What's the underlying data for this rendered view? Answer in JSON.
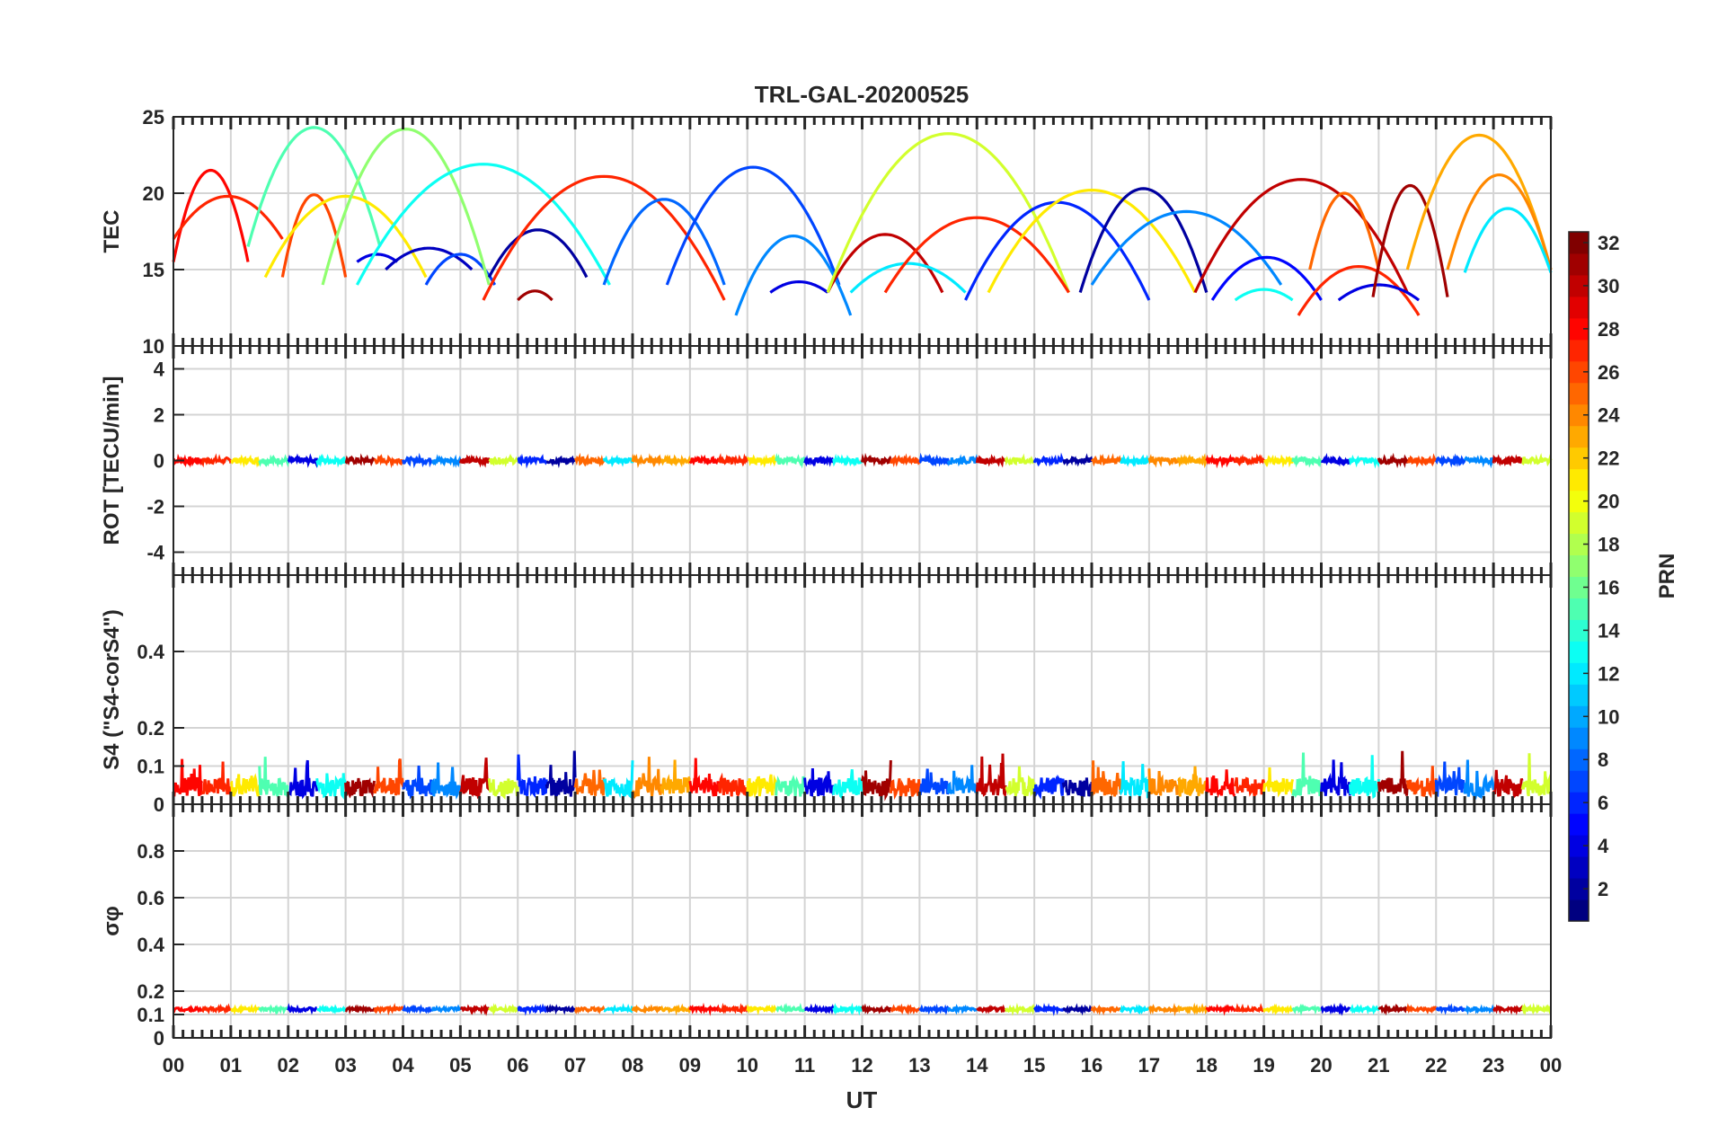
{
  "chart_data": {
    "type": "line",
    "title": "TRL-GAL-20200525",
    "xlabel": "UT",
    "x_tick_labels": [
      "00",
      "01",
      "02",
      "03",
      "04",
      "05",
      "06",
      "07",
      "08",
      "09",
      "10",
      "11",
      "12",
      "13",
      "14",
      "15",
      "16",
      "17",
      "18",
      "19",
      "20",
      "21",
      "22",
      "23",
      "00"
    ],
    "xlim": [
      0,
      24
    ],
    "grid": true,
    "colorbar": {
      "label": "PRN",
      "range": [
        1,
        32
      ],
      "ticks": [
        "2",
        "4",
        "6",
        "8",
        "10",
        "12",
        "14",
        "16",
        "18",
        "20",
        "22",
        "24",
        "26",
        "28",
        "30",
        "32"
      ],
      "colormap": "jet"
    },
    "panels": [
      {
        "id": "tec",
        "ylabel": "TEC",
        "ylim": [
          10,
          25
        ],
        "y_ticks": [
          "10",
          "15",
          "20",
          "25"
        ],
        "series": [
          {
            "prn": 28,
            "start": 0.0,
            "end": 1.3,
            "peak": 21.5,
            "min": 15.5
          },
          {
            "prn": 27,
            "start": 0.0,
            "end": 1.9,
            "peak": 19.8,
            "min": 17.0
          },
          {
            "prn": 15,
            "start": 1.3,
            "end": 3.6,
            "peak": 24.3,
            "min": 16.5
          },
          {
            "prn": 26,
            "start": 1.9,
            "end": 3.0,
            "peak": 19.9,
            "min": 14.5
          },
          {
            "prn": 21,
            "start": 1.6,
            "end": 4.4,
            "peak": 19.8,
            "min": 14.5
          },
          {
            "prn": 4,
            "start": 3.2,
            "end": 3.9,
            "peak": 16.0,
            "min": 15.5
          },
          {
            "prn": 3,
            "start": 3.7,
            "end": 5.2,
            "peak": 16.4,
            "min": 15.0
          },
          {
            "prn": 7,
            "start": 4.4,
            "end": 5.6,
            "peak": 16.0,
            "min": 14.0
          },
          {
            "prn": 17,
            "start": 2.6,
            "end": 5.5,
            "peak": 24.2,
            "min": 14.0
          },
          {
            "prn": 13,
            "start": 3.2,
            "end": 7.6,
            "peak": 21.9,
            "min": 14.0
          },
          {
            "prn": 2,
            "start": 5.5,
            "end": 7.2,
            "peak": 17.6,
            "min": 14.5
          },
          {
            "prn": 27,
            "start": 5.4,
            "end": 9.6,
            "peak": 21.1,
            "min": 13.0
          },
          {
            "prn": 31,
            "start": 6.0,
            "end": 6.6,
            "peak": 13.6,
            "min": 13.0
          },
          {
            "prn": 8,
            "start": 7.5,
            "end": 9.6,
            "peak": 19.6,
            "min": 14.0
          },
          {
            "prn": 7,
            "start": 8.6,
            "end": 11.6,
            "peak": 21.7,
            "min": 14.0
          },
          {
            "prn": 9,
            "start": 9.8,
            "end": 11.8,
            "peak": 17.2,
            "min": 12.0
          },
          {
            "prn": 4,
            "start": 10.4,
            "end": 11.4,
            "peak": 14.2,
            "min": 13.5
          },
          {
            "prn": 30,
            "start": 11.4,
            "end": 13.4,
            "peak": 17.3,
            "min": 13.5
          },
          {
            "prn": 19,
            "start": 11.4,
            "end": 15.6,
            "peak": 23.9,
            "min": 13.5
          },
          {
            "prn": 12,
            "start": 11.8,
            "end": 13.8,
            "peak": 15.4,
            "min": 13.5
          },
          {
            "prn": 27,
            "start": 12.4,
            "end": 15.6,
            "peak": 18.4,
            "min": 13.5
          },
          {
            "prn": 6,
            "start": 13.8,
            "end": 17.0,
            "peak": 19.4,
            "min": 13.0
          },
          {
            "prn": 21,
            "start": 14.2,
            "end": 17.8,
            "peak": 20.2,
            "min": 13.5
          },
          {
            "prn": 2,
            "start": 15.8,
            "end": 18.0,
            "peak": 20.3,
            "min": 13.5
          },
          {
            "prn": 9,
            "start": 16.0,
            "end": 19.3,
            "peak": 18.8,
            "min": 14.0
          },
          {
            "prn": 30,
            "start": 17.8,
            "end": 21.5,
            "peak": 20.9,
            "min": 13.5
          },
          {
            "prn": 5,
            "start": 18.1,
            "end": 20.0,
            "peak": 15.8,
            "min": 13.0
          },
          {
            "prn": 13,
            "start": 18.5,
            "end": 19.5,
            "peak": 13.7,
            "min": 13.0
          },
          {
            "prn": 27,
            "start": 19.6,
            "end": 21.7,
            "peak": 15.2,
            "min": 12.0
          },
          {
            "prn": 4,
            "start": 20.3,
            "end": 21.7,
            "peak": 14.0,
            "min": 13.0
          },
          {
            "prn": 25,
            "start": 19.8,
            "end": 21.0,
            "peak": 20.0,
            "min": 15.0
          },
          {
            "prn": 31,
            "start": 20.9,
            "end": 22.2,
            "peak": 20.5,
            "min": 13.2
          },
          {
            "prn": 23,
            "start": 21.5,
            "end": 24.0,
            "peak": 23.8,
            "min": 15.0
          },
          {
            "prn": 24,
            "start": 22.2,
            "end": 24.0,
            "peak": 21.2,
            "min": 15.0
          },
          {
            "prn": 12,
            "start": 22.5,
            "end": 24.0,
            "peak": 19.0,
            "min": 14.8
          }
        ]
      },
      {
        "id": "rot",
        "ylabel": "ROT [TECU/min]",
        "ylim": [
          -5,
          5
        ],
        "y_ticks": [
          "-4",
          "-2",
          "0",
          "2",
          "4"
        ],
        "description_values": {
          "typical": 0.0,
          "max_abs": 0.2
        }
      },
      {
        "id": "s4",
        "ylabel": "S4 (\"S4-corS4\")",
        "ylim": [
          0,
          0.6
        ],
        "y_ticks": [
          "0",
          "0.1",
          "0.2",
          "0.4"
        ],
        "description_values": {
          "typical": 0.05,
          "max": 0.17
        }
      },
      {
        "id": "sigma",
        "ylabel": "σφ",
        "ylim": [
          0,
          1
        ],
        "y_ticks": [
          "0",
          "0.1",
          "0.2",
          "0.4",
          "0.6",
          "0.8"
        ],
        "description_values": {
          "typical": 0.12,
          "max": 0.15
        }
      }
    ]
  }
}
